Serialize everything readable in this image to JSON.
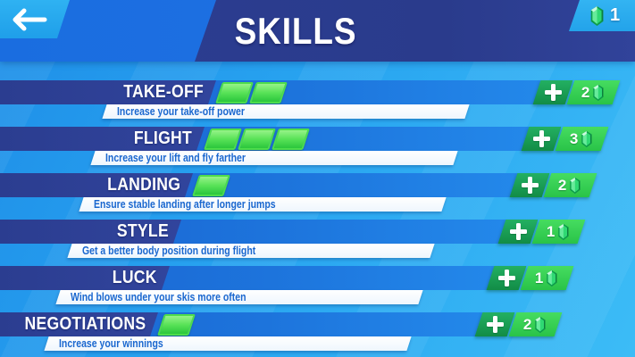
{
  "header": {
    "title": "SKILLS",
    "gem_count": "1"
  },
  "skills": [
    {
      "name": "TAKE-OFF",
      "description": "Increase your take-off power",
      "level": 2,
      "cost": "2"
    },
    {
      "name": "FLIGHT",
      "description": "Increase your lift and fly farther",
      "level": 3,
      "cost": "3"
    },
    {
      "name": "LANDING",
      "description": "Ensure stable landing after longer jumps",
      "level": 1,
      "cost": "2"
    },
    {
      "name": "STYLE",
      "description": "Get a better body position during flight",
      "level": 0,
      "cost": "1"
    },
    {
      "name": "LUCK",
      "description": "Wind blows under your skis more often",
      "level": 0,
      "cost": "1"
    },
    {
      "name": "NEGOTIATIONS",
      "description": "Increase your winnings",
      "level": 1,
      "cost": "2"
    }
  ],
  "icons": {
    "back": "back-arrow-icon",
    "gem": "gem-icon",
    "plus": "plus-icon"
  },
  "colors": {
    "sky_blue": "#2aa5f1",
    "header_blue": "#1d70e2",
    "navy": "#2b3d90",
    "band_blue": "#1d74dc",
    "segment_green": "#58e257",
    "plus_green": "#1aa054",
    "plate_green": "#35d053",
    "description_text": "#1a67cf"
  }
}
